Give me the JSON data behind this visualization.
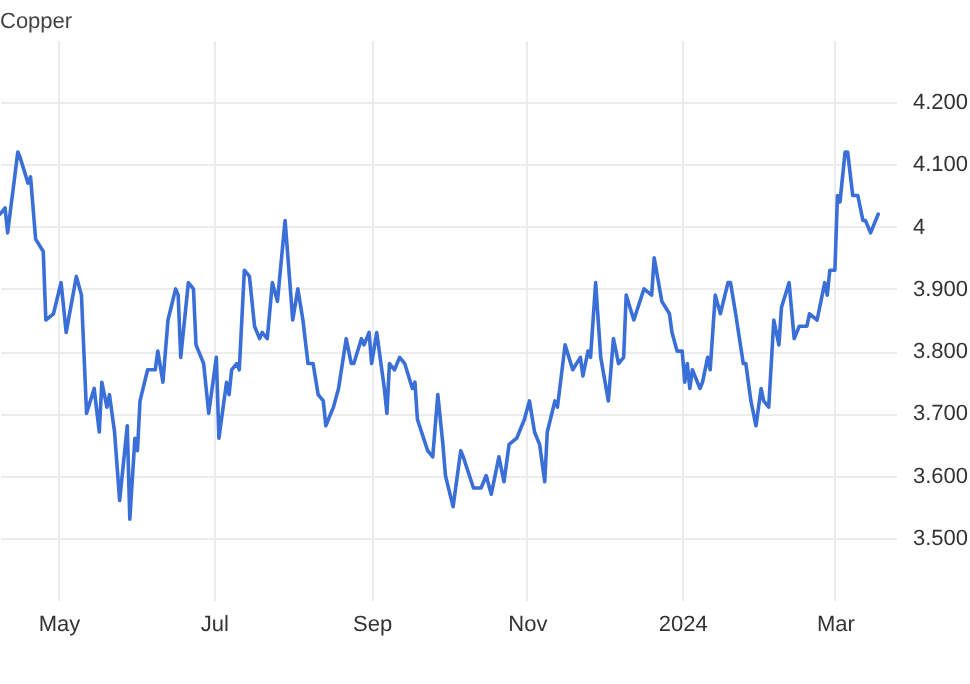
{
  "chart_data": {
    "type": "line",
    "title": "Copper",
    "xlim": [
      "2023-04-08",
      "2024-03-25"
    ],
    "xticks": [
      {
        "value": "2023-05-01",
        "label": "May"
      },
      {
        "value": "2023-07-01",
        "label": "Jul"
      },
      {
        "value": "2023-09-01",
        "label": "Sep"
      },
      {
        "value": "2023-11-01",
        "label": "Nov"
      },
      {
        "value": "2024-01-01",
        "label": "2024"
      },
      {
        "value": "2024-03-01",
        "label": "Mar"
      }
    ],
    "ylim": [
      3.4,
      4.3
    ],
    "yticks": [
      {
        "value": 3.5,
        "label": "3.500"
      },
      {
        "value": 3.6,
        "label": "3.600"
      },
      {
        "value": 3.7,
        "label": "3.700"
      },
      {
        "value": 3.8,
        "label": "3.800"
      },
      {
        "value": 3.9,
        "label": "3.900"
      },
      {
        "value": 4,
        "label": "4"
      },
      {
        "value": 4.1,
        "label": "4.100"
      },
      {
        "value": 4.2,
        "label": "4.200"
      }
    ],
    "grid": true,
    "series": [
      {
        "color": "#3a6fd8",
        "x": [
          "2023-04-08",
          "2023-04-10",
          "2023-04-11",
          "2023-04-15",
          "2023-04-16",
          "2023-04-19",
          "2023-04-20",
          "2023-04-22",
          "2023-04-25",
          "2023-04-26",
          "2023-04-29",
          "2023-05-02",
          "2023-05-04",
          "2023-05-08",
          "2023-05-10",
          "2023-05-12",
          "2023-05-15",
          "2023-05-17",
          "2023-05-18",
          "2023-05-20",
          "2023-05-21",
          "2023-05-23",
          "2023-05-25",
          "2023-05-28",
          "2023-05-29",
          "2023-05-31",
          "2023-06-01",
          "2023-06-02",
          "2023-06-05",
          "2023-06-08",
          "2023-06-09",
          "2023-06-11",
          "2023-06-13",
          "2023-06-16",
          "2023-06-17",
          "2023-06-18",
          "2023-06-21",
          "2023-06-23",
          "2023-06-24",
          "2023-06-27",
          "2023-06-29",
          "2023-07-02",
          "2023-07-03",
          "2023-07-06",
          "2023-07-07",
          "2023-07-08",
          "2023-07-10",
          "2023-07-11",
          "2023-07-13",
          "2023-07-15",
          "2023-07-17",
          "2023-07-19",
          "2023-07-20",
          "2023-07-22",
          "2023-07-24",
          "2023-07-26",
          "2023-07-29",
          "2023-08-01",
          "2023-08-03",
          "2023-08-05",
          "2023-08-07",
          "2023-08-09",
          "2023-08-11",
          "2023-08-13",
          "2023-08-14",
          "2023-08-17",
          "2023-08-19",
          "2023-08-22",
          "2023-08-24",
          "2023-08-25",
          "2023-08-28",
          "2023-08-29",
          "2023-08-31",
          "2023-09-01",
          "2023-09-03",
          "2023-09-06",
          "2023-09-07",
          "2023-09-08",
          "2023-09-10",
          "2023-09-12",
          "2023-09-14",
          "2023-09-17",
          "2023-09-18",
          "2023-09-19",
          "2023-09-23",
          "2023-09-25",
          "2023-09-27",
          "2023-09-29",
          "2023-09-30",
          "2023-10-03",
          "2023-10-06",
          "2023-10-07",
          "2023-10-11",
          "2023-10-14",
          "2023-10-16",
          "2023-10-18",
          "2023-10-21",
          "2023-10-23",
          "2023-10-25",
          "2023-10-28",
          "2023-10-31",
          "2023-11-02",
          "2023-11-04",
          "2023-11-06",
          "2023-11-08",
          "2023-11-09",
          "2023-11-12",
          "2023-11-13",
          "2023-11-16",
          "2023-11-19",
          "2023-11-22",
          "2023-11-23",
          "2023-11-25",
          "2023-11-26",
          "2023-11-28",
          "2023-11-30",
          "2023-12-03",
          "2023-12-05",
          "2023-12-07",
          "2023-12-09",
          "2023-12-10",
          "2023-12-13",
          "2023-12-17",
          "2023-12-20",
          "2023-12-21",
          "2023-12-24",
          "2023-12-27",
          "2023-12-28",
          "2023-12-30",
          "2024-01-01",
          "2024-01-02",
          "2024-01-03",
          "2024-01-04",
          "2024-01-05",
          "2024-01-08",
          "2024-01-09",
          "2024-01-11",
          "2024-01-12",
          "2024-01-14",
          "2024-01-16",
          "2024-01-19",
          "2024-01-20",
          "2024-01-22",
          "2024-01-25",
          "2024-01-26",
          "2024-01-28",
          "2024-01-30",
          "2024-02-01",
          "2024-02-02",
          "2024-02-04",
          "2024-02-06",
          "2024-02-08",
          "2024-02-09",
          "2024-02-12",
          "2024-02-14",
          "2024-02-16",
          "2024-02-19",
          "2024-02-20",
          "2024-02-23",
          "2024-02-26",
          "2024-02-27",
          "2024-02-28",
          "2024-03-01",
          "2024-03-02",
          "2024-03-03",
          "2024-03-05",
          "2024-03-06",
          "2024-03-08",
          "2024-03-10",
          "2024-03-12",
          "2024-03-13",
          "2024-03-15",
          "2024-03-18"
        ],
        "values": [
          4.02,
          4.03,
          3.99,
          4.12,
          4.11,
          4.07,
          4.08,
          3.98,
          3.96,
          3.85,
          3.86,
          3.91,
          3.83,
          3.92,
          3.89,
          3.7,
          3.74,
          3.67,
          3.75,
          3.71,
          3.73,
          3.67,
          3.56,
          3.68,
          3.53,
          3.66,
          3.64,
          3.72,
          3.77,
          3.77,
          3.8,
          3.75,
          3.85,
          3.9,
          3.89,
          3.79,
          3.91,
          3.9,
          3.81,
          3.78,
          3.7,
          3.79,
          3.66,
          3.75,
          3.73,
          3.77,
          3.78,
          3.77,
          3.93,
          3.92,
          3.84,
          3.82,
          3.83,
          3.82,
          3.91,
          3.88,
          4.01,
          3.85,
          3.9,
          3.85,
          3.78,
          3.78,
          3.73,
          3.72,
          3.68,
          3.71,
          3.74,
          3.82,
          3.78,
          3.78,
          3.82,
          3.81,
          3.83,
          3.78,
          3.83,
          3.74,
          3.7,
          3.78,
          3.77,
          3.79,
          3.78,
          3.74,
          3.75,
          3.69,
          3.64,
          3.63,
          3.73,
          3.65,
          3.6,
          3.55,
          3.64,
          3.63,
          3.58,
          3.58,
          3.6,
          3.57,
          3.63,
          3.59,
          3.65,
          3.66,
          3.69,
          3.72,
          3.67,
          3.65,
          3.59,
          3.67,
          3.72,
          3.71,
          3.81,
          3.77,
          3.79,
          3.76,
          3.8,
          3.79,
          3.91,
          3.79,
          3.72,
          3.82,
          3.78,
          3.79,
          3.89,
          3.85,
          3.9,
          3.89,
          3.95,
          3.88,
          3.86,
          3.83,
          3.8,
          3.8,
          3.75,
          3.78,
          3.74,
          3.77,
          3.74,
          3.75,
          3.79,
          3.77,
          3.89,
          3.86,
          3.91,
          3.91,
          3.86,
          3.78,
          3.78,
          3.72,
          3.68,
          3.74,
          3.72,
          3.71,
          3.85,
          3.81,
          3.87,
          3.91,
          3.82,
          3.84,
          3.84,
          3.86,
          3.85,
          3.91,
          3.89,
          3.93,
          3.93,
          4.05,
          4.04,
          4.12,
          4.12,
          4.05,
          4.05,
          4.01,
          4.01,
          3.99,
          4.02
        ]
      }
    ]
  }
}
